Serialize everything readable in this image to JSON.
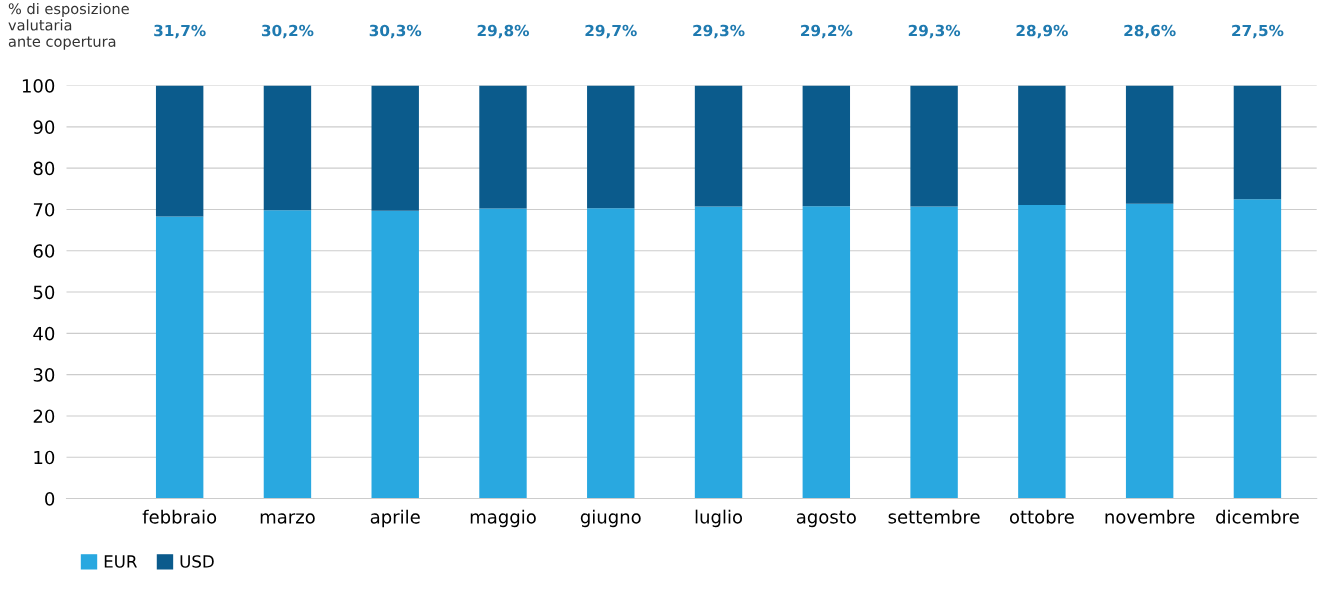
{
  "chart_data": {
    "type": "bar",
    "stacked": true,
    "ylabel": "% di esposizione\nvalutaria\nante copertura",
    "categories": [
      "febbraio",
      "marzo",
      "aprile",
      "maggio",
      "giugno",
      "luglio",
      "agosto",
      "settembre",
      "ottobre",
      "novembre",
      "dicembre"
    ],
    "series": [
      {
        "name": "EUR",
        "color": "#29a8e0",
        "values": [
          68.3,
          69.8,
          69.7,
          70.2,
          70.3,
          70.7,
          70.8,
          70.7,
          71.1,
          71.4,
          72.5
        ]
      },
      {
        "name": "USD",
        "color": "#0b5b8c",
        "values": [
          31.7,
          30.2,
          30.3,
          29.8,
          29.7,
          29.3,
          29.2,
          29.3,
          28.9,
          28.6,
          27.5
        ],
        "value_labels": [
          "31,7%",
          "30,2%",
          "30,3%",
          "29,8%",
          "29,7%",
          "29,3%",
          "29,2%",
          "29,3%",
          "28,9%",
          "28,6%",
          "27,5%"
        ]
      }
    ],
    "ylim": [
      0,
      100
    ],
    "yticks": [
      0,
      10,
      20,
      30,
      40,
      50,
      60,
      70,
      80,
      90,
      100
    ],
    "grid": "y",
    "legend": "bottom left"
  }
}
